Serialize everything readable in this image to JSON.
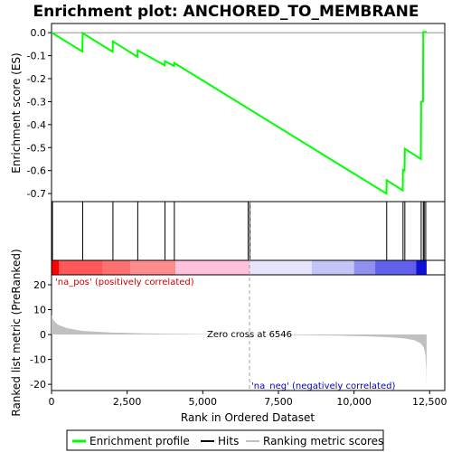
{
  "chart_data": {
    "type": "line",
    "title": "Enrichment plot: ANCHORED_TO_MEMBRANE",
    "xlabel": "Rank in Ordered Dataset",
    "ylabel_top": "Enrichment score (ES)",
    "ylabel_bottom": "Ranked list metric (PreRanked)",
    "xlim": [
      0,
      13000
    ],
    "x_ticks": [
      0,
      2500,
      5000,
      7500,
      10000,
      12500
    ],
    "x_tick_labels": [
      "0",
      "2,500",
      "5,000",
      "7,500",
      "10,000",
      "12,500"
    ],
    "es_ylim": [
      -0.735,
      0.04
    ],
    "es_ticks": [
      0.0,
      -0.1,
      -0.2,
      -0.3,
      -0.4,
      -0.5,
      -0.6,
      -0.7
    ],
    "es_tick_labels": [
      "0.0",
      "-0.1",
      "-0.2",
      "-0.3",
      "-0.4",
      "-0.5",
      "-0.6",
      "-0.7"
    ],
    "metric_ylim": [
      -22.5,
      24
    ],
    "metric_ticks": [
      20,
      10,
      0,
      -10,
      -20
    ],
    "metric_tick_labels": [
      "20",
      "10",
      "0",
      "-10",
      "-20"
    ],
    "total_genes": 12400,
    "zero_cross_rank": 6546,
    "hits": [
      30,
      1030,
      2030,
      2850,
      3750,
      4060,
      6500,
      6560,
      11080,
      11620,
      11680,
      12220,
      12290,
      12320,
      12370
    ],
    "enrichment_profile": [
      {
        "x": 0,
        "y": 0.0
      },
      {
        "x": 30,
        "y": -0.002
      },
      {
        "x": 1020,
        "y": -0.082
      },
      {
        "x": 1030,
        "y": -0.002
      },
      {
        "x": 2020,
        "y": -0.083
      },
      {
        "x": 2030,
        "y": -0.038
      },
      {
        "x": 2840,
        "y": -0.105
      },
      {
        "x": 2850,
        "y": -0.077
      },
      {
        "x": 3740,
        "y": -0.142
      },
      {
        "x": 3750,
        "y": -0.124
      },
      {
        "x": 4050,
        "y": -0.145
      },
      {
        "x": 4060,
        "y": -0.132
      },
      {
        "x": 11070,
        "y": -0.7
      },
      {
        "x": 11080,
        "y": -0.642
      },
      {
        "x": 11610,
        "y": -0.686
      },
      {
        "x": 11620,
        "y": -0.597
      },
      {
        "x": 11670,
        "y": -0.6
      },
      {
        "x": 11680,
        "y": -0.505
      },
      {
        "x": 12210,
        "y": -0.55
      },
      {
        "x": 12220,
        "y": -0.3
      },
      {
        "x": 12280,
        "y": -0.3
      },
      {
        "x": 12290,
        "y": 0.003
      },
      {
        "x": 12400,
        "y": 0.003
      }
    ],
    "metric_profile": [
      {
        "x": 0,
        "y": 7.8
      },
      {
        "x": 60,
        "y": 5.8
      },
      {
        "x": 200,
        "y": 4.0
      },
      {
        "x": 500,
        "y": 2.6
      },
      {
        "x": 1000,
        "y": 1.5
      },
      {
        "x": 2000,
        "y": 0.8
      },
      {
        "x": 3000,
        "y": 0.5
      },
      {
        "x": 4000,
        "y": 0.3
      },
      {
        "x": 5000,
        "y": 0.15
      },
      {
        "x": 6546,
        "y": 0.0
      },
      {
        "x": 8000,
        "y": -0.2
      },
      {
        "x": 9500,
        "y": -0.45
      },
      {
        "x": 10500,
        "y": -0.75
      },
      {
        "x": 11200,
        "y": -1.1
      },
      {
        "x": 11700,
        "y": -1.6
      },
      {
        "x": 12000,
        "y": -2.3
      },
      {
        "x": 12200,
        "y": -3.5
      },
      {
        "x": 12300,
        "y": -5.0
      },
      {
        "x": 12360,
        "y": -8.0
      },
      {
        "x": 12390,
        "y": -14.0
      },
      {
        "x": 12400,
        "y": -21.5
      }
    ],
    "heatmap_bands": [
      {
        "from": 0,
        "to": 250,
        "color": "#ff0000"
      },
      {
        "from": 250,
        "to": 1700,
        "color": "#ff5858"
      },
      {
        "from": 1700,
        "to": 2600,
        "color": "#ff7070"
      },
      {
        "from": 2600,
        "to": 4100,
        "color": "#ff8c8c"
      },
      {
        "from": 4100,
        "to": 6546,
        "color": "#ffc0dc"
      },
      {
        "from": 6546,
        "to": 8600,
        "color": "#e4e4fa"
      },
      {
        "from": 8600,
        "to": 10000,
        "color": "#c4c4f6"
      },
      {
        "from": 10000,
        "to": 10700,
        "color": "#9090f0"
      },
      {
        "from": 10700,
        "to": 12050,
        "color": "#6060ea"
      },
      {
        "from": 12050,
        "to": 12400,
        "color": "#1010d8"
      }
    ],
    "annotations": {
      "pos_label": "'na_pos' (positively correlated)",
      "neg_label": "'na_neg' (negatively correlated)",
      "zero_cross_label": "Zero cross at 6546"
    },
    "legend": {
      "placement": "bottom",
      "entries": [
        {
          "label": "Enrichment profile",
          "color": "#00ff00"
        },
        {
          "label": "Hits",
          "color": "#000000"
        },
        {
          "label": "Ranking metric scores",
          "color": "#c0c0c0"
        }
      ]
    },
    "colors": {
      "profile": "#00ff00",
      "metric_fill": "#c0c0c0",
      "pos_text": "#cc0000",
      "neg_text": "#0000cc",
      "zero_line": "#a0a0a0"
    }
  }
}
